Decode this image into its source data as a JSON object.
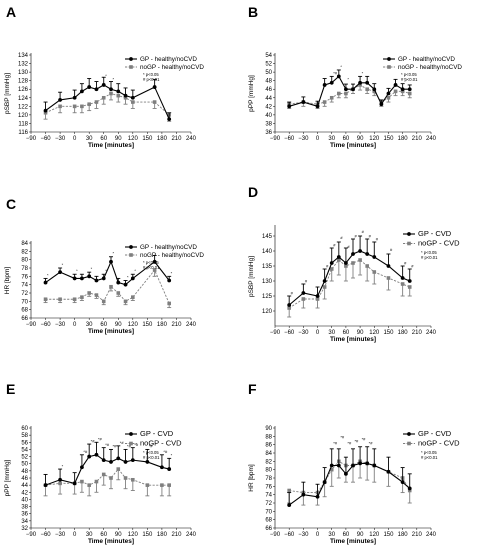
{
  "colors": {
    "gp": "#000000",
    "nogp": "#7f7f7f"
  },
  "chart_data": [
    {
      "panel": "A",
      "type": "line",
      "xlabel": "Time [minutes]",
      "ylabel": "pSBP [mmHg]",
      "xlim": [
        -90,
        240
      ],
      "ylim": [
        116,
        134
      ],
      "xticks": [
        -90,
        -60,
        -30,
        0,
        30,
        60,
        90,
        120,
        150,
        180,
        210,
        240
      ],
      "xtick_labels": [
        "−90",
        "−60",
        "−30",
        "0",
        "30",
        "60",
        "90",
        "120",
        "150",
        "180",
        "210",
        "240"
      ],
      "yticks": [
        116,
        118,
        120,
        122,
        124,
        126,
        128,
        130,
        132,
        134
      ],
      "legend": [
        "GP - healthy/noCVD",
        "noGP - healthy/noCVD"
      ],
      "significance": [
        "* p<0.05",
        "# p<0.01"
      ],
      "x": [
        -60,
        -30,
        0,
        15,
        30,
        45,
        60,
        75,
        90,
        105,
        120,
        165,
        195
      ],
      "series": [
        {
          "name": "GP - healthy/noCVD",
          "values": [
            121,
            123.5,
            124,
            125.5,
            126.5,
            126,
            127,
            126,
            125.5,
            124.5,
            124,
            126.5,
            119
          ],
          "err": [
            2,
            1.8,
            1.8,
            1.8,
            2,
            1.8,
            1.8,
            1.8,
            1.8,
            1.8,
            1.8,
            1.8,
            1.5
          ]
        },
        {
          "name": "noGP - healthy/noCVD",
          "values": [
            120.5,
            122,
            122,
            122,
            122.5,
            123,
            124,
            125,
            124.5,
            124,
            123,
            123,
            120
          ],
          "err": [
            1.5,
            1.5,
            1.5,
            1.5,
            1.5,
            1.5,
            1.5,
            1.5,
            1.5,
            1.5,
            1.5,
            1.5,
            1.5
          ]
        }
      ],
      "annotations": [
        {
          "x": 60,
          "y": 128.8,
          "text": "*"
        },
        {
          "x": 75,
          "y": 128,
          "text": "*"
        }
      ]
    },
    {
      "panel": "B",
      "type": "line",
      "xlabel": "Time [minutes]",
      "ylabel": "pPP [mmHg]",
      "xlim": [
        -90,
        240
      ],
      "ylim": [
        36,
        54
      ],
      "xticks": [
        -90,
        -60,
        -30,
        0,
        30,
        60,
        90,
        120,
        150,
        180,
        210,
        240
      ],
      "xtick_labels": [
        "−90",
        "−60",
        "−30",
        "0",
        "30",
        "60",
        "90",
        "120",
        "150",
        "180",
        "210",
        "240"
      ],
      "yticks": [
        36,
        38,
        40,
        42,
        44,
        46,
        48,
        50,
        52,
        54
      ],
      "legend": [
        "GP - healthy/noCVD",
        "noGP - healthy/noCVD"
      ],
      "significance": [
        "* p<0.05",
        "# p<0.01"
      ],
      "x": [
        -60,
        -30,
        0,
        15,
        30,
        45,
        60,
        75,
        90,
        105,
        120,
        135,
        150,
        165,
        180,
        195
      ],
      "series": [
        {
          "name": "GP - healthy/noCVD",
          "values": [
            42,
            43,
            42,
            47,
            47.5,
            49,
            46,
            46,
            47.5,
            47.5,
            46,
            42.5,
            45,
            47,
            46,
            46
          ],
          "err": [
            1,
            1.2,
            1.2,
            1.5,
            1.5,
            1.5,
            1.2,
            1.2,
            1.5,
            1.5,
            1.3,
            1,
            1.2,
            1.3,
            1.3,
            1
          ]
        },
        {
          "name": "noGP - healthy/noCVD",
          "values": [
            42.5,
            43,
            42.5,
            43,
            44,
            45,
            45,
            46,
            47,
            46,
            45.5,
            43,
            44,
            45.5,
            45.5,
            45
          ],
          "err": [
            1,
            1,
            1,
            1,
            1,
            1,
            1,
            1,
            1.2,
            1,
            1,
            1,
            1,
            1,
            1,
            1
          ]
        }
      ],
      "annotations": [
        {
          "x": 30,
          "y": 49.5,
          "text": "*#"
        },
        {
          "x": 45,
          "y": 51,
          "text": "*"
        },
        {
          "x": 60,
          "y": 48,
          "text": "*"
        },
        {
          "x": 90,
          "y": 49.5,
          "text": "*"
        },
        {
          "x": 180,
          "y": 48,
          "text": "*"
        }
      ]
    },
    {
      "panel": "C",
      "type": "line",
      "xlabel": "Time [minutes]",
      "ylabel": "HR [bpm]",
      "xlim": [
        -90,
        240
      ],
      "ylim": [
        66,
        84
      ],
      "xticks": [
        -90,
        -60,
        -30,
        0,
        30,
        60,
        90,
        120,
        150,
        180,
        210,
        240
      ],
      "xtick_labels": [
        "−90",
        "−60",
        "−30",
        "0",
        "30",
        "60",
        "90",
        "120",
        "150",
        "180",
        "210",
        "240"
      ],
      "yticks": [
        66,
        68,
        70,
        72,
        74,
        76,
        78,
        80,
        82,
        84
      ],
      "legend": [
        "GP - healthy/noCVD",
        "noGP - healthy/noCVD"
      ],
      "significance": [
        "* p<0.05",
        "# p<0.01"
      ],
      "x": [
        -60,
        -30,
        0,
        15,
        30,
        45,
        60,
        75,
        90,
        105,
        120,
        165,
        195
      ],
      "series": [
        {
          "name": "GP - healthy/noCVD",
          "values": [
            74.5,
            77,
            75.5,
            75.5,
            76,
            75,
            75.5,
            79.5,
            74.5,
            74,
            75.5,
            79.5,
            75
          ],
          "err": [
            1,
            1,
            1,
            1,
            1,
            1,
            1,
            1.2,
            1,
            1,
            1,
            1.5,
            1
          ]
        },
        {
          "name": "noGP - healthy/noCVD",
          "values": [
            70.5,
            70.5,
            70.5,
            71,
            72,
            71.5,
            70,
            73.5,
            72,
            70,
            71,
            77.5,
            69.5
          ],
          "err": [
            0.8,
            0.8,
            0.8,
            0.8,
            0.8,
            0.8,
            0.8,
            1,
            0.8,
            0.8,
            0.8,
            1.5,
            1
          ]
        }
      ],
      "annotations": [
        {
          "x": -60,
          "y": 76,
          "text": "*"
        },
        {
          "x": -30,
          "y": 78.5,
          "text": "*"
        },
        {
          "x": 0,
          "y": 77,
          "text": "*"
        },
        {
          "x": 30,
          "y": 77.5,
          "text": "*"
        },
        {
          "x": 60,
          "y": 77,
          "text": "*"
        },
        {
          "x": 75,
          "y": 81.2,
          "text": "*"
        },
        {
          "x": 105,
          "y": 75.5,
          "text": "*"
        },
        {
          "x": 120,
          "y": 77,
          "text": "*"
        },
        {
          "x": 195,
          "y": 76.5,
          "text": "*"
        }
      ]
    },
    {
      "panel": "D",
      "type": "line",
      "xlabel": "Time [minutes]",
      "ylabel": "pSBP [mmHg]",
      "xlim": [
        -90,
        240
      ],
      "ylim": [
        115,
        148
      ],
      "xticks": [
        -90,
        -60,
        -30,
        0,
        30,
        60,
        90,
        120,
        150,
        180,
        210,
        240
      ],
      "xtick_labels": [
        "−90",
        "−60",
        "−30",
        "0",
        "30",
        "60",
        "90",
        "120",
        "150",
        "180",
        "210",
        "240"
      ],
      "yticks": [
        120,
        125,
        130,
        135,
        140,
        145
      ],
      "legend": [
        "GP - CVD",
        "noGP - CVD"
      ],
      "significance": [
        "* p<0.05",
        "# p<0.01"
      ],
      "x": [
        -60,
        -30,
        0,
        15,
        30,
        45,
        60,
        75,
        90,
        105,
        120,
        150,
        180,
        195
      ],
      "series": [
        {
          "name": "GP - CVD",
          "values": [
            122,
            126,
            125,
            130,
            136,
            138,
            136,
            139,
            140,
            139,
            138,
            135,
            131,
            130
          ],
          "err": [
            3,
            3,
            3,
            4,
            5,
            5,
            5,
            5,
            5,
            5,
            5,
            4,
            4,
            4
          ]
        },
        {
          "name": "noGP - CVD",
          "values": [
            121,
            124,
            124,
            128,
            134,
            137,
            135,
            136,
            137,
            135,
            133,
            131,
            129,
            128
          ],
          "err": [
            3,
            3,
            3,
            4,
            4,
            5,
            5,
            5,
            5,
            5,
            4,
            4,
            4,
            3
          ]
        }
      ],
      "annotations": [
        {
          "x": -60,
          "y": 125.5,
          "text": "#"
        },
        {
          "x": -30,
          "y": 129.5,
          "text": "#"
        },
        {
          "x": 15,
          "y": 134.5,
          "text": "#"
        },
        {
          "x": 30,
          "y": 141.5,
          "text": "#"
        },
        {
          "x": 45,
          "y": 144,
          "text": "#"
        },
        {
          "x": 60,
          "y": 141,
          "text": "#"
        },
        {
          "x": 75,
          "y": 144.5,
          "text": "#"
        },
        {
          "x": 90,
          "y": 146,
          "text": "#"
        },
        {
          "x": 105,
          "y": 144.5,
          "text": "#"
        },
        {
          "x": 120,
          "y": 143.5,
          "text": "#"
        },
        {
          "x": 150,
          "y": 140,
          "text": "#"
        },
        {
          "x": 180,
          "y": 135.5,
          "text": "#"
        },
        {
          "x": 195,
          "y": 134.5,
          "text": "#"
        }
      ]
    },
    {
      "panel": "E",
      "type": "line",
      "xlabel": "Time [minutes]",
      "ylabel": "pPP [mmHg]",
      "xlim": [
        -90,
        240
      ],
      "ylim": [
        32,
        60
      ],
      "xticks": [
        -90,
        -60,
        -30,
        0,
        30,
        60,
        90,
        120,
        150,
        180,
        210,
        240
      ],
      "xtick_labels": [
        "−90",
        "−60",
        "−30",
        "0",
        "30",
        "60",
        "90",
        "120",
        "150",
        "180",
        "210",
        "240"
      ],
      "yticks": [
        32,
        34,
        36,
        38,
        40,
        42,
        44,
        46,
        48,
        50,
        52,
        54,
        56,
        58,
        60
      ],
      "legend": [
        "GP - CVD",
        "noGP - CVD"
      ],
      "significance": [
        "* p<0.05",
        "# p<0.01"
      ],
      "x": [
        -60,
        -30,
        0,
        15,
        30,
        45,
        60,
        75,
        90,
        105,
        120,
        150,
        180,
        195
      ],
      "series": [
        {
          "name": "GP - CVD",
          "values": [
            44,
            45.5,
            44.5,
            49,
            52,
            52.5,
            51,
            50.5,
            51.5,
            50.5,
            51,
            50.5,
            49,
            48.5
          ],
          "err": [
            3,
            3,
            3,
            3.5,
            3.5,
            3.5,
            3.5,
            3.5,
            3.5,
            3.5,
            3.5,
            3.5,
            3.5,
            3
          ]
        },
        {
          "name": "noGP - CVD",
          "values": [
            44,
            44.5,
            44.5,
            45,
            44,
            45,
            47,
            46,
            48.5,
            46,
            45.5,
            44,
            44,
            44
          ],
          "err": [
            3,
            3,
            3,
            3,
            3,
            3,
            3,
            3,
            3,
            3,
            3,
            3,
            3,
            3
          ]
        }
      ],
      "annotations": [
        {
          "x": -30,
          "y": 49,
          "text": "*"
        },
        {
          "x": 15,
          "y": 53,
          "text": "*#"
        },
        {
          "x": 30,
          "y": 56,
          "text": "*#"
        },
        {
          "x": 45,
          "y": 56.5,
          "text": "*#"
        },
        {
          "x": 60,
          "y": 55,
          "text": "*#"
        },
        {
          "x": 75,
          "y": 54.5,
          "text": "*#"
        },
        {
          "x": 90,
          "y": 55.5,
          "text": "*#"
        },
        {
          "x": 105,
          "y": 54.5,
          "text": "*#"
        },
        {
          "x": 120,
          "y": 55,
          "text": "*#"
        },
        {
          "x": 150,
          "y": 54.5,
          "text": "*#"
        },
        {
          "x": 180,
          "y": 53,
          "text": "*#"
        },
        {
          "x": 195,
          "y": 52,
          "text": "*"
        }
      ]
    },
    {
      "panel": "F",
      "type": "line",
      "xlabel": "Time [minutes]",
      "ylabel": "HR [bpm]",
      "xlim": [
        -90,
        240
      ],
      "ylim": [
        66,
        90
      ],
      "xticks": [
        -90,
        -60,
        -30,
        0,
        30,
        60,
        90,
        120,
        150,
        180,
        210,
        240
      ],
      "xtick_labels": [
        "−90",
        "−60",
        "−30",
        "0",
        "30",
        "60",
        "90",
        "120",
        "150",
        "180",
        "210",
        "240"
      ],
      "yticks": [
        66,
        68,
        70,
        72,
        74,
        76,
        78,
        80,
        82,
        84,
        86,
        88,
        90
      ],
      "legend": [
        "GP - CVD",
        "noGP - CVD"
      ],
      "significance": [
        "* p<0.05",
        "# p<0.01"
      ],
      "x": [
        -60,
        -30,
        0,
        15,
        30,
        45,
        60,
        75,
        90,
        105,
        120,
        150,
        180,
        195
      ],
      "series": [
        {
          "name": "GP - CVD",
          "values": [
            71.5,
            74,
            73.5,
            77,
            81,
            81,
            79,
            81,
            81.5,
            81.5,
            81,
            79.5,
            77,
            75.5
          ],
          "err": [
            3,
            3,
            3,
            3.5,
            4,
            4,
            4,
            4,
            4,
            4,
            4,
            3.5,
            3.5,
            3.5
          ]
        },
        {
          "name": "noGP - CVD",
          "values": [
            75,
            74.5,
            74.5,
            77,
            80,
            82,
            81,
            81,
            82,
            81.5,
            81,
            79.5,
            78,
            75
          ],
          "err": [
            3,
            3,
            3,
            3.5,
            4,
            4,
            4,
            4,
            4,
            4,
            4,
            3.5,
            3.5,
            3
          ]
        }
      ],
      "annotations": [
        {
          "x": 30,
          "y": 86,
          "text": "*#"
        },
        {
          "x": 45,
          "y": 87.5,
          "text": "*#"
        },
        {
          "x": 60,
          "y": 86,
          "text": "*#"
        },
        {
          "x": 75,
          "y": 86.5,
          "text": "*#"
        },
        {
          "x": 90,
          "y": 87,
          "text": "*#"
        },
        {
          "x": 105,
          "y": 86,
          "text": "*#"
        }
      ]
    }
  ]
}
